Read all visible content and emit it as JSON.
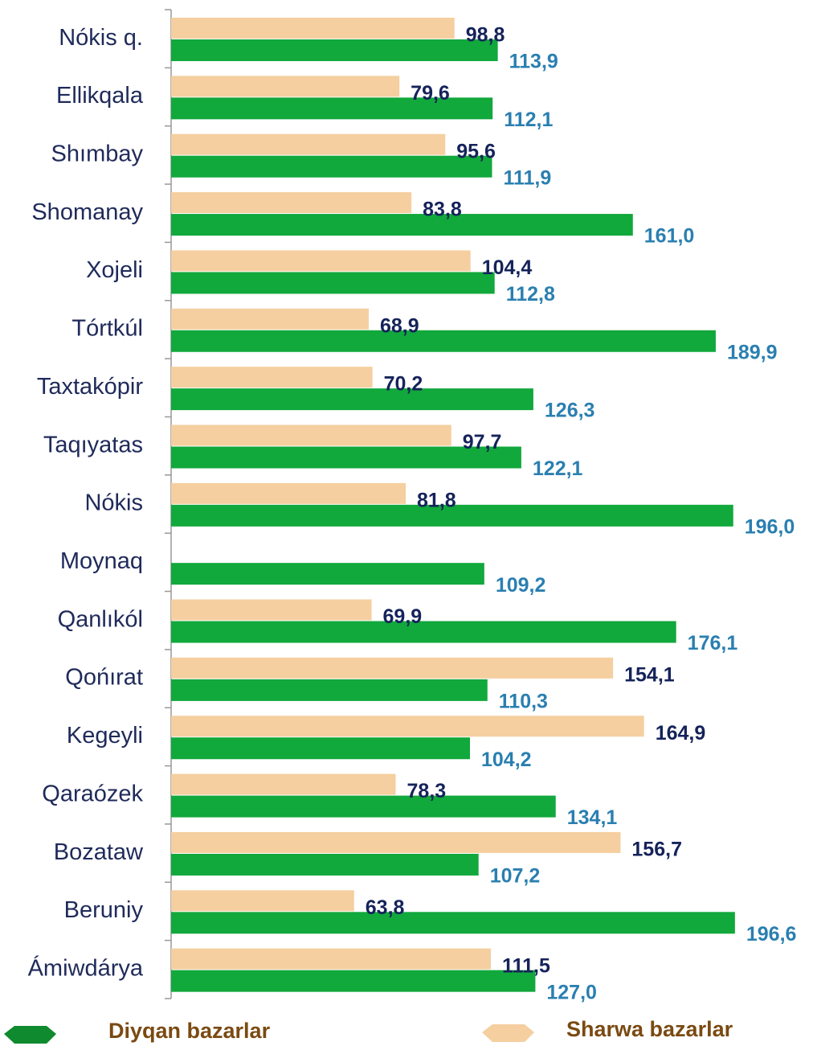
{
  "chart_data": {
    "type": "bar",
    "orientation": "horizontal",
    "categories": [
      "Nókis q.",
      "Ellikqala",
      "Shımbay",
      "Shomanay",
      "Xojeli",
      "Tórtkúl",
      "Taxtakópir",
      "Taqıyatas",
      "Nókis",
      "Moynaq",
      "Qanlıkól",
      "Qońırat",
      "Kegeyli",
      "Qaraózek",
      "Bozataw",
      "Beruniy",
      "Ámiwdárya"
    ],
    "series": [
      {
        "name": "Diyqan bazarlar",
        "color": "#11a83c",
        "label_color": "#2a7fb0",
        "values": [
          113.9,
          112.1,
          111.9,
          161.0,
          112.8,
          189.9,
          126.3,
          122.1,
          196.0,
          109.2,
          176.1,
          110.3,
          104.2,
          134.1,
          107.2,
          196.6,
          127.0
        ],
        "value_labels": [
          "113,9",
          "112,1",
          "111,9",
          "161,0",
          "112,8",
          "189,9",
          "126,3",
          "122,1",
          "196,0",
          "109,2",
          "176,1",
          "110,3",
          "104,2",
          "134,1",
          "107,2",
          "196,6",
          "127,0"
        ]
      },
      {
        "name": "Sharwa bazarlar",
        "color": "#f5cfa0",
        "label_color": "#15235a",
        "values": [
          98.8,
          79.6,
          95.6,
          83.8,
          104.4,
          68.9,
          70.2,
          97.7,
          81.8,
          null,
          69.9,
          154.1,
          164.9,
          78.3,
          156.7,
          63.8,
          111.5
        ],
        "value_labels": [
          "98,8",
          "79,6",
          "95,6",
          "83,8",
          "104,4",
          "68,9",
          "70,2",
          "97,7",
          "81,8",
          null,
          "69,9",
          "154,1",
          "164,9",
          "78,3",
          "156,7",
          "63,8",
          "111,5"
        ]
      }
    ],
    "xlim": [
      0,
      200
    ]
  }
}
